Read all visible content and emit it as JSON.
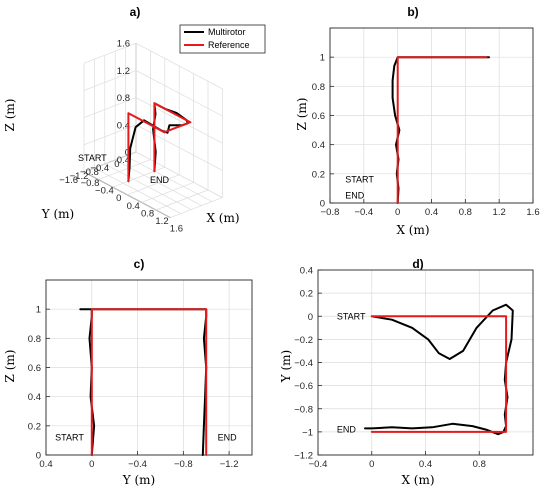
{
  "colors": {
    "multirotor": "#000000",
    "reference": "#e41a1c",
    "grid": "#dcdcdc",
    "axis": "#262626",
    "background": "#ffffff"
  },
  "chart_data": [
    {
      "id": "a",
      "type": "line",
      "title": "a)",
      "projection": "3d",
      "xlabel": "X (m)",
      "ylabel": "Y (m)",
      "zlabel": "Z (m)",
      "x_ticks": [
        "-0.8",
        "-0.4",
        "0",
        "0.4",
        "0.8",
        "1.2",
        "1.6"
      ],
      "y_ticks": [
        "0.4",
        "0",
        "-0.4",
        "-0.8",
        "-1.2",
        "-1.6"
      ],
      "z_ticks": [
        "0",
        "0.4",
        "0.8",
        "1.2",
        "1.6"
      ],
      "xlim": [
        -0.8,
        1.6
      ],
      "ylim": [
        -1.6,
        0.4
      ],
      "zlim": [
        0,
        1.6
      ],
      "grid": true,
      "legend": {
        "placement": "top-right",
        "entries": [
          "Multirotor",
          "Reference"
        ]
      },
      "annotations": [
        "START",
        "END"
      ],
      "series": [
        {
          "name": "Multirotor",
          "x": [
            0,
            0.05,
            -0.05,
            0.03,
            0,
            0.3,
            0.6,
            0.9,
            1.0,
            1.0,
            0.85,
            1.05,
            0.9,
            1.0,
            0.7,
            0.4,
            0.2,
            0.05,
            0.03,
            0
          ],
          "y": [
            0,
            -0.02,
            0.02,
            0,
            0,
            0,
            0.02,
            0,
            -0.1,
            -0.3,
            -0.6,
            -0.95,
            -1.0,
            -1.0,
            -0.98,
            -0.95,
            -1.0,
            -1.0,
            -1.0,
            -1.0
          ],
          "z": [
            0,
            0.3,
            0.6,
            0.85,
            1.0,
            1.0,
            1.02,
            1.0,
            1.0,
            1.0,
            1.0,
            1.0,
            1.0,
            1.0,
            1.0,
            1.0,
            0.85,
            0.5,
            0.2,
            0
          ]
        },
        {
          "name": "Reference",
          "x": [
            0,
            0,
            1.0,
            1.0,
            0,
            0
          ],
          "y": [
            0,
            0,
            0,
            -1.0,
            -1.0,
            -1.0
          ],
          "z": [
            0,
            1.0,
            1.0,
            1.0,
            1.0,
            0
          ]
        }
      ]
    },
    {
      "id": "b",
      "type": "line",
      "title": "b)",
      "xlabel": "X (m)",
      "ylabel": "Z (m)",
      "xlim": [
        -0.8,
        1.6
      ],
      "ylim": [
        0,
        1.2
      ],
      "x_ticks": [
        -0.8,
        -0.4,
        0,
        0.4,
        0.8,
        1.2,
        1.6
      ],
      "x_tick_labels": [
        "−0.8",
        "−0.4",
        "0",
        "0.4",
        "0.8",
        "1.2",
        "1.6"
      ],
      "y_ticks": [
        0,
        0.2,
        0.4,
        0.6,
        0.8,
        1
      ],
      "y_tick_labels": [
        "0",
        "0.2",
        "0.4",
        "0.6",
        "0.8",
        "1"
      ],
      "grid": true,
      "annotations": [
        {
          "text": "START",
          "x": -0.62,
          "y": 0.16
        },
        {
          "text": "END",
          "x": -0.62,
          "y": 0.05
        }
      ],
      "series": [
        {
          "name": "Multirotor",
          "x": [
            0,
            0.01,
            -0.01,
            0.01,
            -0.02,
            0.02,
            -0.03,
            -0.06,
            -0.06,
            -0.04,
            0,
            0.3,
            0.6,
            0.9,
            1.06,
            1.08
          ],
          "y": [
            0,
            0.1,
            0.2,
            0.3,
            0.4,
            0.5,
            0.6,
            0.72,
            0.84,
            0.94,
            1.0,
            1.0,
            1.0,
            1.0,
            1.0,
            1.0
          ]
        },
        {
          "name": "Reference",
          "x": [
            0,
            0,
            1.05
          ],
          "y": [
            0,
            1.0,
            1.0
          ]
        }
      ]
    },
    {
      "id": "c",
      "type": "line",
      "title": "c)",
      "xlabel": "Y (m)",
      "ylabel": "Z (m)",
      "xlim": [
        0.4,
        -1.4
      ],
      "ylim": [
        0,
        1.2
      ],
      "x_ticks": [
        0.4,
        0,
        -0.4,
        -0.8,
        -1.2
      ],
      "x_tick_labels": [
        "0.4",
        "0",
        "−0.4",
        "−0.8",
        "−1.2"
      ],
      "y_ticks": [
        0,
        0.2,
        0.4,
        0.6,
        0.8,
        1
      ],
      "y_tick_labels": [
        "0",
        "0.2",
        "0.4",
        "0.6",
        "0.8",
        "1"
      ],
      "grid": true,
      "annotations": [
        {
          "text": "START",
          "x": 0.32,
          "y": 0.12
        },
        {
          "text": "END",
          "x": -1.1,
          "y": 0.12
        }
      ],
      "series": [
        {
          "name": "Multirotor",
          "x": [
            0,
            -0.02,
            0.01,
            0.0,
            0.02,
            0.0,
            0.0,
            0.1,
            0.0,
            -0.5,
            -0.95,
            -1.0,
            -1.0,
            -0.98,
            -1.0,
            -0.99,
            -0.98,
            -0.97
          ],
          "y": [
            0,
            0.2,
            0.4,
            0.6,
            0.8,
            0.95,
            1.0,
            1.0,
            1.0,
            1.0,
            1.0,
            1.0,
            0.95,
            0.8,
            0.6,
            0.4,
            0.2,
            0
          ]
        },
        {
          "name": "Reference",
          "x": [
            0,
            0,
            -1.0,
            -1.0
          ],
          "y": [
            0,
            1.0,
            1.0,
            0
          ]
        }
      ]
    },
    {
      "id": "d",
      "type": "line",
      "title": "d)",
      "xlabel": "X (m)",
      "ylabel": "Y (m)",
      "xlim": [
        -0.4,
        1.2
      ],
      "ylim": [
        -1.2,
        0.4
      ],
      "x_ticks": [
        -0.4,
        0,
        0.4,
        0.8
      ],
      "x_tick_labels": [
        "−0.4",
        "0",
        "0.4",
        "0.8"
      ],
      "y_ticks": [
        -1.2,
        -1,
        -0.8,
        -0.6,
        -0.4,
        -0.2,
        0,
        0.2,
        0.4
      ],
      "y_tick_labels": [
        "−1.2",
        "−1",
        "−0.8",
        "−0.6",
        "−0.4",
        "−0.2",
        "0",
        "0.2",
        "0.4"
      ],
      "grid": true,
      "annotations": [
        {
          "text": "START",
          "x": -0.26,
          "y": 0.0
        },
        {
          "text": "END",
          "x": -0.26,
          "y": -0.98
        }
      ],
      "series": [
        {
          "name": "Multirotor",
          "x": [
            0,
            0.15,
            0.3,
            0.42,
            0.5,
            0.58,
            0.68,
            0.78,
            0.9,
            1.0,
            1.05,
            1.04,
            1.0,
            0.99,
            1.01,
            0.99,
            1.0,
            0.98,
            0.94,
            0.85,
            0.75,
            0.6,
            0.45,
            0.3,
            0.15,
            0,
            -0.05
          ],
          "y": [
            0,
            -0.03,
            -0.1,
            -0.2,
            -0.32,
            -0.37,
            -0.3,
            -0.1,
            0.05,
            0.1,
            0.05,
            -0.2,
            -0.4,
            -0.55,
            -0.7,
            -0.85,
            -0.95,
            -1.0,
            -1.02,
            -0.98,
            -0.95,
            -0.93,
            -0.96,
            -0.97,
            -0.96,
            -0.97,
            -0.97
          ]
        },
        {
          "name": "Reference",
          "x": [
            0,
            1.0,
            1.0,
            0
          ],
          "y": [
            0,
            0,
            -1.0,
            -1.0
          ]
        }
      ]
    }
  ]
}
